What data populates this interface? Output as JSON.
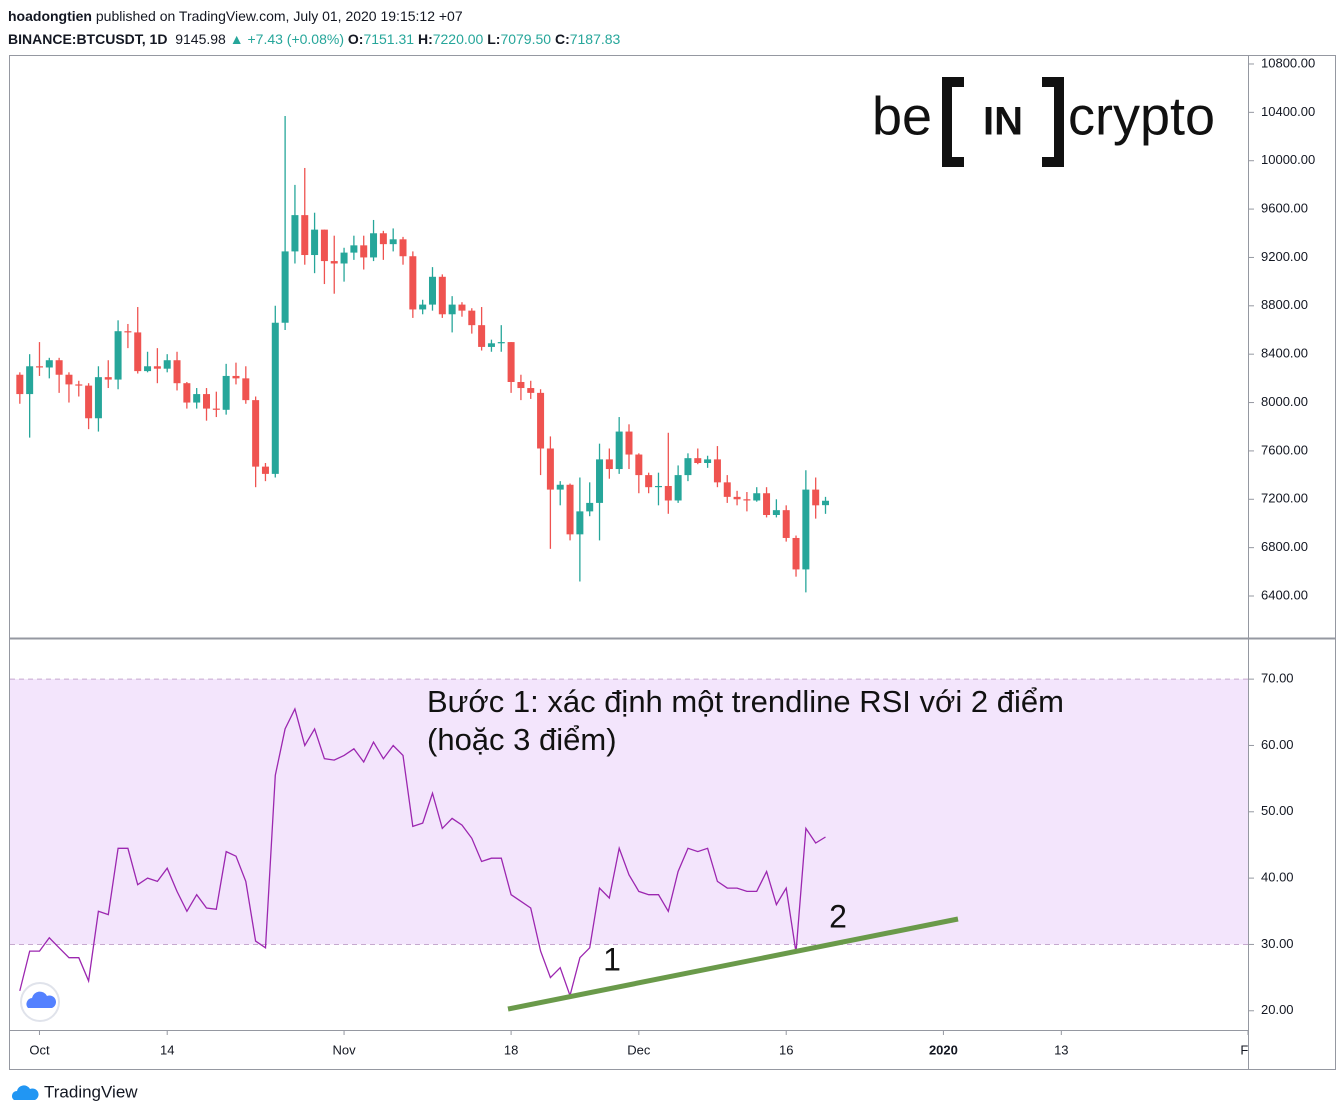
{
  "header": {
    "author": "hoadongtien",
    "published": "published on TradingView.com, July 01, 2020 19:15:12 +07",
    "symbol": "BINANCE:BTCUSDT, 1D",
    "last": "9145.98",
    "change": "▲ +7.43 (+0.08%)",
    "ohlc": [
      {
        "label": "O:",
        "value": "7151.31"
      },
      {
        "label": "H:",
        "value": "7220.00"
      },
      {
        "label": "L:",
        "value": "7079.50"
      },
      {
        "label": "C:",
        "value": "7187.83"
      }
    ]
  },
  "logo": {
    "left": "be",
    "middle": "IN",
    "right": "crypto"
  },
  "annotation": {
    "lines": [
      "Bước 1: xác định một trendline RSI với 2 điểm",
      "(hoặc 3 điểm)"
    ],
    "point_labels": [
      "1",
      "2"
    ]
  },
  "footer": "TradingView",
  "chart_data": [
    {
      "type": "candlestick",
      "x": [
        "09-29",
        "09-30",
        "10-01",
        "10-02",
        "10-03",
        "10-04",
        "10-05",
        "10-06",
        "10-07",
        "10-08",
        "10-09",
        "10-10",
        "10-11",
        "10-12",
        "10-13",
        "10-14",
        "10-15",
        "10-16",
        "10-17",
        "10-18",
        "10-19",
        "10-20",
        "10-21",
        "10-22",
        "10-23",
        "10-24",
        "10-25",
        "10-26",
        "10-27",
        "10-28",
        "10-29",
        "10-30",
        "10-31",
        "11-01",
        "11-02",
        "11-03",
        "11-04",
        "11-05",
        "11-06",
        "11-07",
        "11-08",
        "11-09",
        "11-10",
        "11-11",
        "11-12",
        "11-13",
        "11-14",
        "11-15",
        "11-16",
        "11-17",
        "11-18",
        "11-19",
        "11-20",
        "11-21",
        "11-22",
        "11-23",
        "11-24",
        "11-25",
        "11-26",
        "11-27",
        "11-28",
        "11-29",
        "11-30",
        "12-01",
        "12-02",
        "12-03",
        "12-04",
        "12-05",
        "12-06",
        "12-07",
        "12-08",
        "12-09",
        "12-10",
        "12-11",
        "12-12",
        "12-13",
        "12-14",
        "12-15",
        "12-16",
        "12-17",
        "12-18",
        "12-19",
        "12-20"
      ],
      "open": [
        8230,
        8070,
        8300,
        8290,
        8350,
        8230,
        8150,
        8140,
        7870,
        8210,
        8190,
        8590,
        8580,
        8260,
        8300,
        8280,
        8350,
        8160,
        8000,
        8070,
        7950,
        7940,
        8220,
        8200,
        8020,
        7470,
        7410,
        8660,
        9250,
        9550,
        9220,
        9430,
        9170,
        9150,
        9240,
        9300,
        9200,
        9400,
        9310,
        9350,
        9210,
        8770,
        8810,
        9040,
        8730,
        8810,
        8760,
        8640,
        8460,
        8490,
        8500,
        8170,
        8120,
        8080,
        7620,
        7280,
        7320,
        6910,
        7100,
        7170,
        7530,
        7450,
        7760,
        7570,
        7400,
        7300,
        7310,
        7190,
        7400,
        7540,
        7500,
        7530,
        7340,
        7220,
        7200,
        7190,
        7250,
        7070,
        7110,
        6880,
        6620,
        7280,
        7151.31
      ],
      "high": [
        8250,
        8400,
        8500,
        8370,
        8370,
        8250,
        8180,
        8160,
        8300,
        8350,
        8680,
        8650,
        8790,
        8420,
        8450,
        8400,
        8420,
        8170,
        8120,
        8120,
        8090,
        8320,
        8330,
        8300,
        8050,
        7500,
        8800,
        10370,
        9800,
        9940,
        9570,
        9430,
        9380,
        9280,
        9380,
        9380,
        9510,
        9420,
        9440,
        9370,
        9250,
        8850,
        9120,
        9060,
        8880,
        8830,
        8780,
        8790,
        8520,
        8640,
        8500,
        8230,
        8180,
        8110,
        7720,
        7350,
        7330,
        7380,
        7340,
        7660,
        7620,
        7880,
        7820,
        7580,
        7420,
        7420,
        7750,
        7480,
        7580,
        7620,
        7560,
        7640,
        7400,
        7270,
        7260,
        7300,
        7300,
        7200,
        7150,
        6900,
        7440,
        7380,
        7220
      ],
      "low": [
        7990,
        7710,
        8220,
        8200,
        8080,
        8000,
        8050,
        7780,
        7760,
        8120,
        8110,
        8450,
        8240,
        8250,
        8160,
        8250,
        8100,
        7950,
        7950,
        7850,
        7880,
        7900,
        8150,
        7990,
        7300,
        7350,
        7380,
        8600,
        9150,
        9140,
        9070,
        8980,
        8900,
        9000,
        9180,
        9100,
        9170,
        9180,
        9250,
        9140,
        8700,
        8730,
        8760,
        8700,
        8580,
        8710,
        8570,
        8430,
        8420,
        8420,
        8080,
        8020,
        8030,
        7400,
        6790,
        7150,
        6860,
        6520,
        7060,
        6860,
        7370,
        7410,
        7450,
        7250,
        7250,
        7150,
        7080,
        7170,
        7350,
        7490,
        7460,
        7300,
        7170,
        7150,
        7100,
        7180,
        7050,
        7050,
        6850,
        6560,
        6430,
        7040,
        7079.5
      ],
      "close": [
        8070,
        8300,
        8290,
        8350,
        8230,
        8150,
        8140,
        7870,
        8210,
        8190,
        8590,
        8580,
        8260,
        8300,
        8280,
        8350,
        8160,
        8000,
        8070,
        7950,
        7940,
        8220,
        8200,
        8020,
        7470,
        7410,
        8660,
        9250,
        9550,
        9220,
        9430,
        9170,
        9150,
        9240,
        9300,
        9200,
        9400,
        9310,
        9350,
        9210,
        8770,
        8810,
        9040,
        8730,
        8810,
        8760,
        8640,
        8460,
        8490,
        8500,
        8170,
        8120,
        8080,
        7620,
        7280,
        7320,
        6910,
        7100,
        7170,
        7530,
        7450,
        7760,
        7570,
        7400,
        7300,
        7310,
        7190,
        7400,
        7540,
        7500,
        7530,
        7340,
        7220,
        7200,
        7190,
        7250,
        7070,
        7110,
        6880,
        6620,
        7280,
        7150,
        7187.83
      ],
      "up_color": "#26a69a",
      "down_color": "#ef5350",
      "xlim": [
        "09-28",
        "02-01"
      ],
      "ylim": [
        6061,
        10866
      ],
      "yticks": [
        {
          "value": 6400,
          "label": "6400.00"
        },
        {
          "value": 6800,
          "label": "6800.00"
        },
        {
          "value": 7200,
          "label": "7200.00"
        },
        {
          "value": 7600,
          "label": "7600.00"
        },
        {
          "value": 8000,
          "label": "8000.00"
        },
        {
          "value": 8400,
          "label": "8400.00"
        },
        {
          "value": 8800,
          "label": "8800.00"
        },
        {
          "value": 9200,
          "label": "9200.00"
        },
        {
          "value": 9600,
          "label": "9600.00"
        },
        {
          "value": 10000,
          "label": "10000.00"
        },
        {
          "value": 10400,
          "label": "10400.00"
        },
        {
          "value": 10800,
          "label": "10800.00"
        }
      ]
    },
    {
      "type": "line",
      "x": [
        "09-29",
        "09-30",
        "10-01",
        "10-02",
        "10-03",
        "10-04",
        "10-05",
        "10-06",
        "10-07",
        "10-08",
        "10-09",
        "10-10",
        "10-11",
        "10-12",
        "10-13",
        "10-14",
        "10-15",
        "10-16",
        "10-17",
        "10-18",
        "10-19",
        "10-20",
        "10-21",
        "10-22",
        "10-23",
        "10-24",
        "10-25",
        "10-26",
        "10-27",
        "10-28",
        "10-29",
        "10-30",
        "10-31",
        "11-01",
        "11-02",
        "11-03",
        "11-04",
        "11-05",
        "11-06",
        "11-07",
        "11-08",
        "11-09",
        "11-10",
        "11-11",
        "11-12",
        "11-13",
        "11-14",
        "11-15",
        "11-16",
        "11-17",
        "11-18",
        "11-19",
        "11-20",
        "11-21",
        "11-22",
        "11-23",
        "11-24",
        "11-25",
        "11-26",
        "11-27",
        "11-28",
        "11-29",
        "11-30",
        "12-01",
        "12-02",
        "12-03",
        "12-04",
        "12-05",
        "12-06",
        "12-07",
        "12-08",
        "12-09",
        "12-10",
        "12-11",
        "12-12",
        "12-13",
        "12-14",
        "12-15",
        "12-16",
        "12-17",
        "12-18",
        "12-19",
        "12-20"
      ],
      "values": [
        23,
        29,
        29,
        31,
        29.5,
        28,
        28,
        24.5,
        35,
        34.5,
        44.5,
        44.5,
        39,
        40,
        39.5,
        41.5,
        38,
        35,
        37.5,
        35.5,
        35.3,
        44,
        43.3,
        39.5,
        30.5,
        29.5,
        55.5,
        62.5,
        65.5,
        60,
        62.5,
        58,
        57.8,
        58.5,
        59.5,
        57.5,
        60.5,
        58,
        60,
        58.5,
        47.8,
        48.3,
        52.8,
        47.5,
        49,
        48,
        46,
        42.5,
        43,
        43,
        37.5,
        36.5,
        35.5,
        29,
        25,
        26.5,
        22.3,
        28,
        29.5,
        38.5,
        37,
        44.5,
        40.5,
        38,
        37.5,
        37.5,
        35,
        41,
        44.5,
        44,
        44.5,
        39.5,
        38.5,
        38.5,
        38,
        38,
        41,
        36,
        38.5,
        28.8,
        47.5,
        45.3,
        46.2
      ],
      "color": "#9c27b0",
      "band": {
        "lower": 30,
        "upper": 70,
        "color": "#f3e5fc"
      },
      "xlim": [
        "09-28",
        "02-01"
      ],
      "ylim": [
        17.1,
        75.9
      ],
      "yticks": [
        {
          "value": 20,
          "label": "20.00"
        },
        {
          "value": 30,
          "label": "30.00"
        },
        {
          "value": 40,
          "label": "40.00"
        },
        {
          "value": 50,
          "label": "50.00"
        },
        {
          "value": 60,
          "label": "60.00"
        },
        {
          "value": 70,
          "label": "70.00"
        }
      ],
      "xticks": [
        {
          "value": "10-01",
          "label": "Oct"
        },
        {
          "value": "10-14",
          "label": "14"
        },
        {
          "value": "11-01",
          "label": "Nov"
        },
        {
          "value": "11-18",
          "label": "18"
        },
        {
          "value": "12-01",
          "label": "Dec"
        },
        {
          "value": "12-16",
          "label": "16"
        },
        {
          "value": "01-01",
          "label": "2020"
        },
        {
          "value": "01-13",
          "label": "13"
        },
        {
          "value": "02-01",
          "label": "Fe"
        }
      ],
      "bold_ticks": [
        "01-01"
      ]
    }
  ]
}
